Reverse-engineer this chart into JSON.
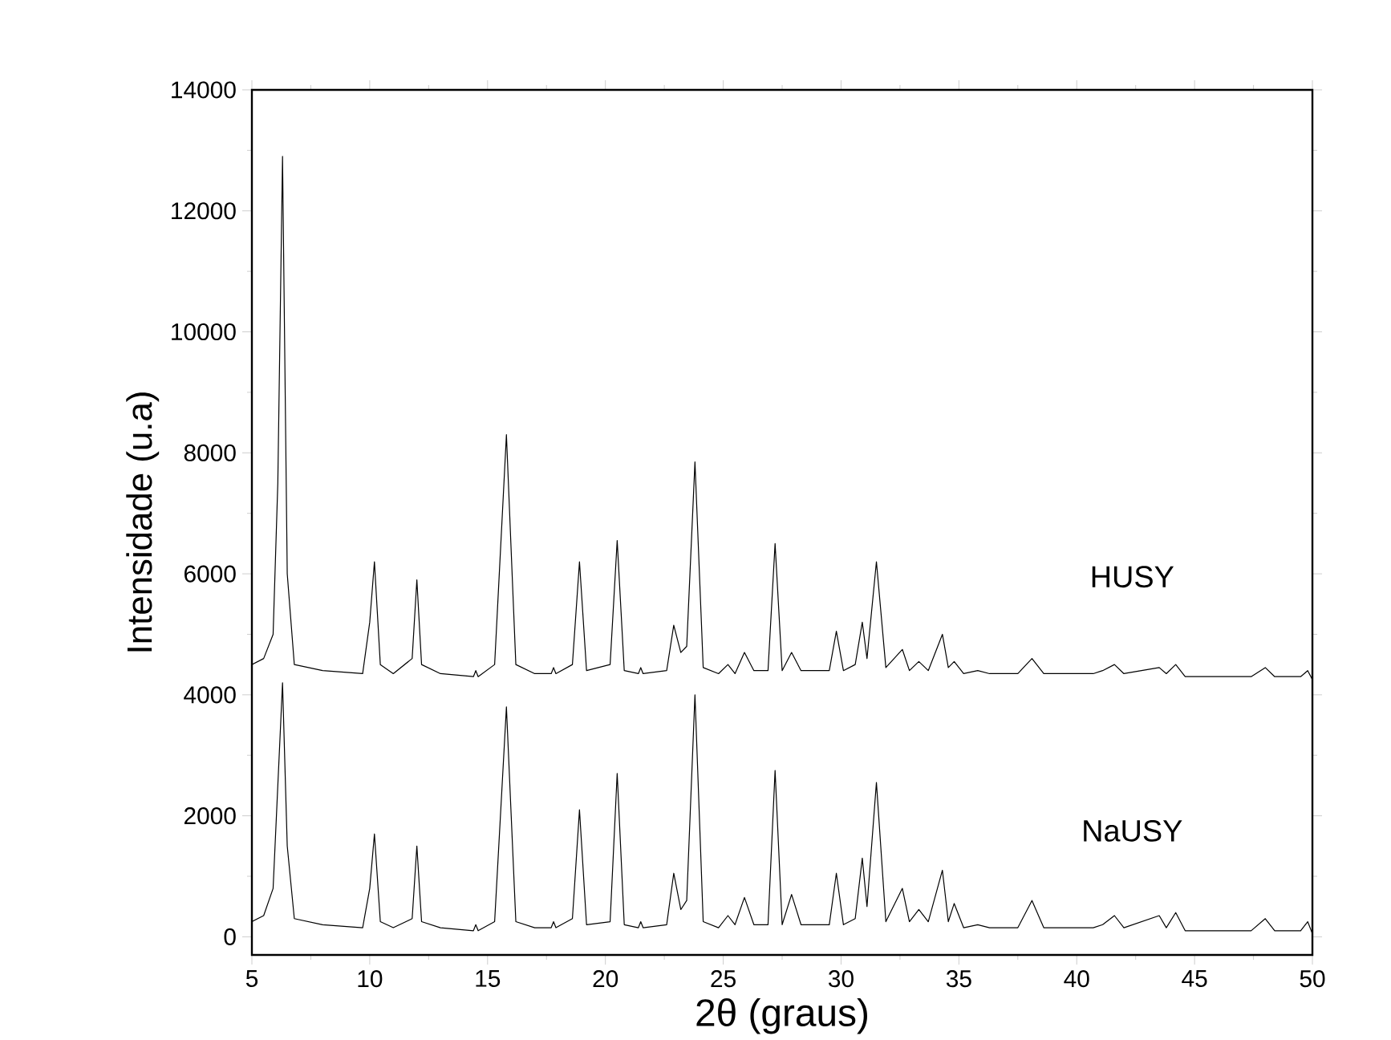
{
  "chart_data": {
    "type": "line",
    "xlabel": "2θ (graus)",
    "ylabel": "Intensidade (u.a)",
    "xlim": [
      5,
      50
    ],
    "xticks": [
      5,
      10,
      15,
      20,
      25,
      30,
      35,
      40,
      45,
      50
    ],
    "ylim": [
      -300,
      14000
    ],
    "yticks": [
      0,
      2000,
      4000,
      6000,
      8000,
      10000,
      12000,
      14000
    ],
    "grid": false,
    "legend": false,
    "marker": "none",
    "line_style": "solid",
    "x": [
      5,
      5.5,
      5.9,
      6.1,
      6.3,
      6.5,
      6.8,
      8,
      9.7,
      10.0,
      10.2,
      10.45,
      11,
      11.8,
      12.0,
      12.2,
      13,
      14.4,
      14.5,
      14.6,
      15.3,
      15.8,
      16.2,
      17,
      17.7,
      17.8,
      17.9,
      18.6,
      18.9,
      19.2,
      20.2,
      20.5,
      20.8,
      21.4,
      21.5,
      21.6,
      22.6,
      22.9,
      23.2,
      23.45,
      23.8,
      24.15,
      24.8,
      25.2,
      25.5,
      25.9,
      26.3,
      26.9,
      27.2,
      27.5,
      27.9,
      28.3,
      29.5,
      29.8,
      30.1,
      30.6,
      30.9,
      31.1,
      31.5,
      31.9,
      32.6,
      32.9,
      33.3,
      33.7,
      34.3,
      34.55,
      34.8,
      35.2,
      35.8,
      36.3,
      37.5,
      38.1,
      38.6,
      39.5,
      40.7,
      41.1,
      41.6,
      42,
      43.5,
      43.8,
      44.2,
      44.6,
      46,
      47.4,
      48.0,
      48.4,
      49.5,
      49.8,
      50
    ],
    "series": [
      {
        "name": "HUSY",
        "color": "#000000",
        "values": [
          4500,
          4600,
          5000,
          7500,
          12900,
          6000,
          4500,
          4400,
          4350,
          5200,
          6200,
          4500,
          4350,
          4600,
          5900,
          4500,
          4350,
          4300,
          4400,
          4300,
          4500,
          8300,
          4500,
          4350,
          4350,
          4450,
          4350,
          4500,
          6200,
          4400,
          4500,
          6550,
          4400,
          4350,
          4450,
          4350,
          4400,
          5150,
          4700,
          4800,
          7850,
          4450,
          4350,
          4500,
          4350,
          4700,
          4400,
          4400,
          6500,
          4400,
          4700,
          4400,
          4400,
          5050,
          4400,
          4500,
          5200,
          4600,
          6200,
          4450,
          4750,
          4400,
          4550,
          4400,
          5000,
          4450,
          4550,
          4350,
          4400,
          4350,
          4350,
          4600,
          4350,
          4350,
          4350,
          4400,
          4500,
          4350,
          4450,
          4350,
          4500,
          4300,
          4300,
          4300,
          4450,
          4300,
          4300,
          4400,
          4250
        ]
      },
      {
        "name": "NaUSY",
        "color": "#000000",
        "values": [
          250,
          350,
          800,
          2500,
          4200,
          1500,
          300,
          200,
          150,
          800,
          1700,
          250,
          150,
          300,
          1500,
          250,
          150,
          100,
          200,
          100,
          250,
          3800,
          250,
          150,
          150,
          250,
          150,
          300,
          2100,
          200,
          250,
          2700,
          200,
          150,
          250,
          150,
          200,
          1050,
          450,
          600,
          4000,
          250,
          150,
          350,
          200,
          650,
          200,
          200,
          2750,
          200,
          700,
          200,
          200,
          1050,
          200,
          300,
          1300,
          500,
          2550,
          250,
          800,
          250,
          450,
          250,
          1100,
          250,
          550,
          150,
          200,
          150,
          150,
          600,
          150,
          150,
          150,
          200,
          350,
          150,
          350,
          150,
          400,
          100,
          100,
          100,
          300,
          100,
          100,
          250,
          50
        ]
      }
    ]
  }
}
